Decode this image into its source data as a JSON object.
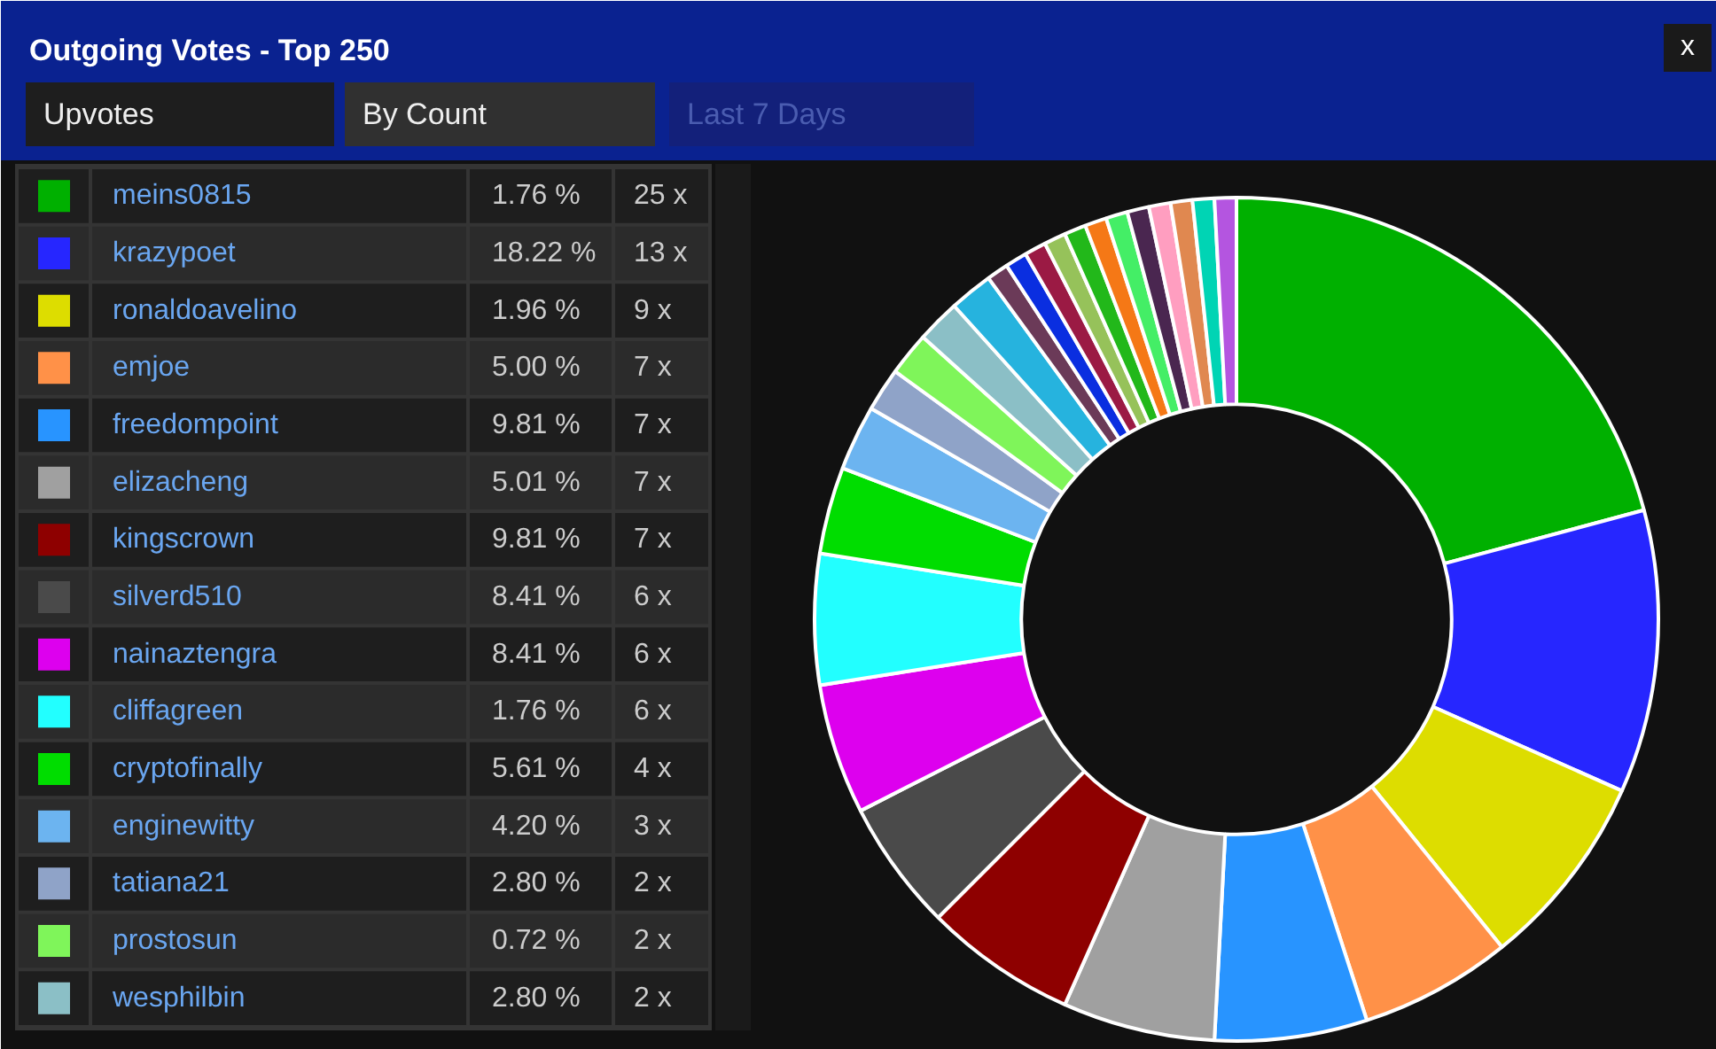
{
  "chart_data": {
    "type": "donut",
    "title": "Outgoing Votes - Top 250",
    "legend": "left",
    "categories": [
      "meins0815",
      "krazypoet",
      "ronaldoavelino",
      "emjoe",
      "freedompoint",
      "elizacheng",
      "kingscrown",
      "silverd510",
      "nainaztengra",
      "cliffagreen",
      "cryptofinally",
      "enginewitty",
      "tatiana21",
      "prostosun",
      "wesphilbin",
      null,
      null,
      null,
      null,
      null,
      null,
      null,
      null,
      null,
      null,
      null,
      null,
      null
    ],
    "values": [
      25,
      13,
      9,
      7,
      7,
      7,
      7,
      6,
      6,
      6,
      4,
      3,
      2,
      2,
      2,
      2,
      1,
      1,
      1,
      1,
      1,
      1,
      1,
      1,
      1,
      1,
      1,
      1
    ],
    "colors": [
      "#00b000",
      "#2626ff",
      "#dddd00",
      "#ff9148",
      "#2894ff",
      "#a0a0a0",
      "#8e0000",
      "#4a4a4a",
      "#dd00ee",
      "#22ffff",
      "#00dd00",
      "#6cb4f0",
      "#8fa3c8",
      "#7ff55a",
      "#8bbfc6",
      "#26b3de",
      "#6b3a58",
      "#0a2ee0",
      "#9b1a44",
      "#96c25a",
      "#22b81a",
      "#f57816",
      "#44ee66",
      "#4a2650",
      "#ff9ec0",
      "#e08850",
      "#00d4b4",
      "#b455e0"
    ],
    "value_labels": [
      "25 x",
      "13 x",
      "9 x",
      "7 x",
      "7 x",
      "7 x",
      "7 x",
      "6 x",
      "6 x",
      "6 x",
      "4 x",
      "3 x",
      "2 x",
      "2 x",
      "2 x",
      null,
      null,
      null,
      null,
      null,
      null,
      null,
      null,
      null,
      null,
      null,
      null,
      null
    ],
    "annotations": [
      "Upvotes",
      "By Count",
      "Last 7 Days",
      "x",
      {
        "text": "1.76 %",
        "x": "meins0815"
      },
      {
        "text": "18.22 %",
        "x": "krazypoet"
      },
      {
        "text": "1.96 %",
        "x": "ronaldoavelino"
      },
      {
        "text": "5.00 %",
        "x": "emjoe"
      },
      {
        "text": "9.81 %",
        "x": "freedompoint"
      },
      {
        "text": "5.01 %",
        "x": "elizacheng"
      },
      {
        "text": "9.81 %",
        "x": "kingscrown"
      },
      {
        "text": "8.41 %",
        "x": "silverd510"
      },
      {
        "text": "8.41 %",
        "x": "nainaztengra"
      },
      {
        "text": "1.76 %",
        "x": "cliffagreen"
      },
      {
        "text": "5.61 %",
        "x": "cryptofinally"
      },
      {
        "text": "4.20 %",
        "x": "enginewitty"
      },
      {
        "text": "2.80 %",
        "x": "tatiana21"
      },
      {
        "text": "0.72 %",
        "x": "prostosun"
      },
      {
        "text": "2.80 %",
        "x": "wesphilbin"
      }
    ]
  }
}
